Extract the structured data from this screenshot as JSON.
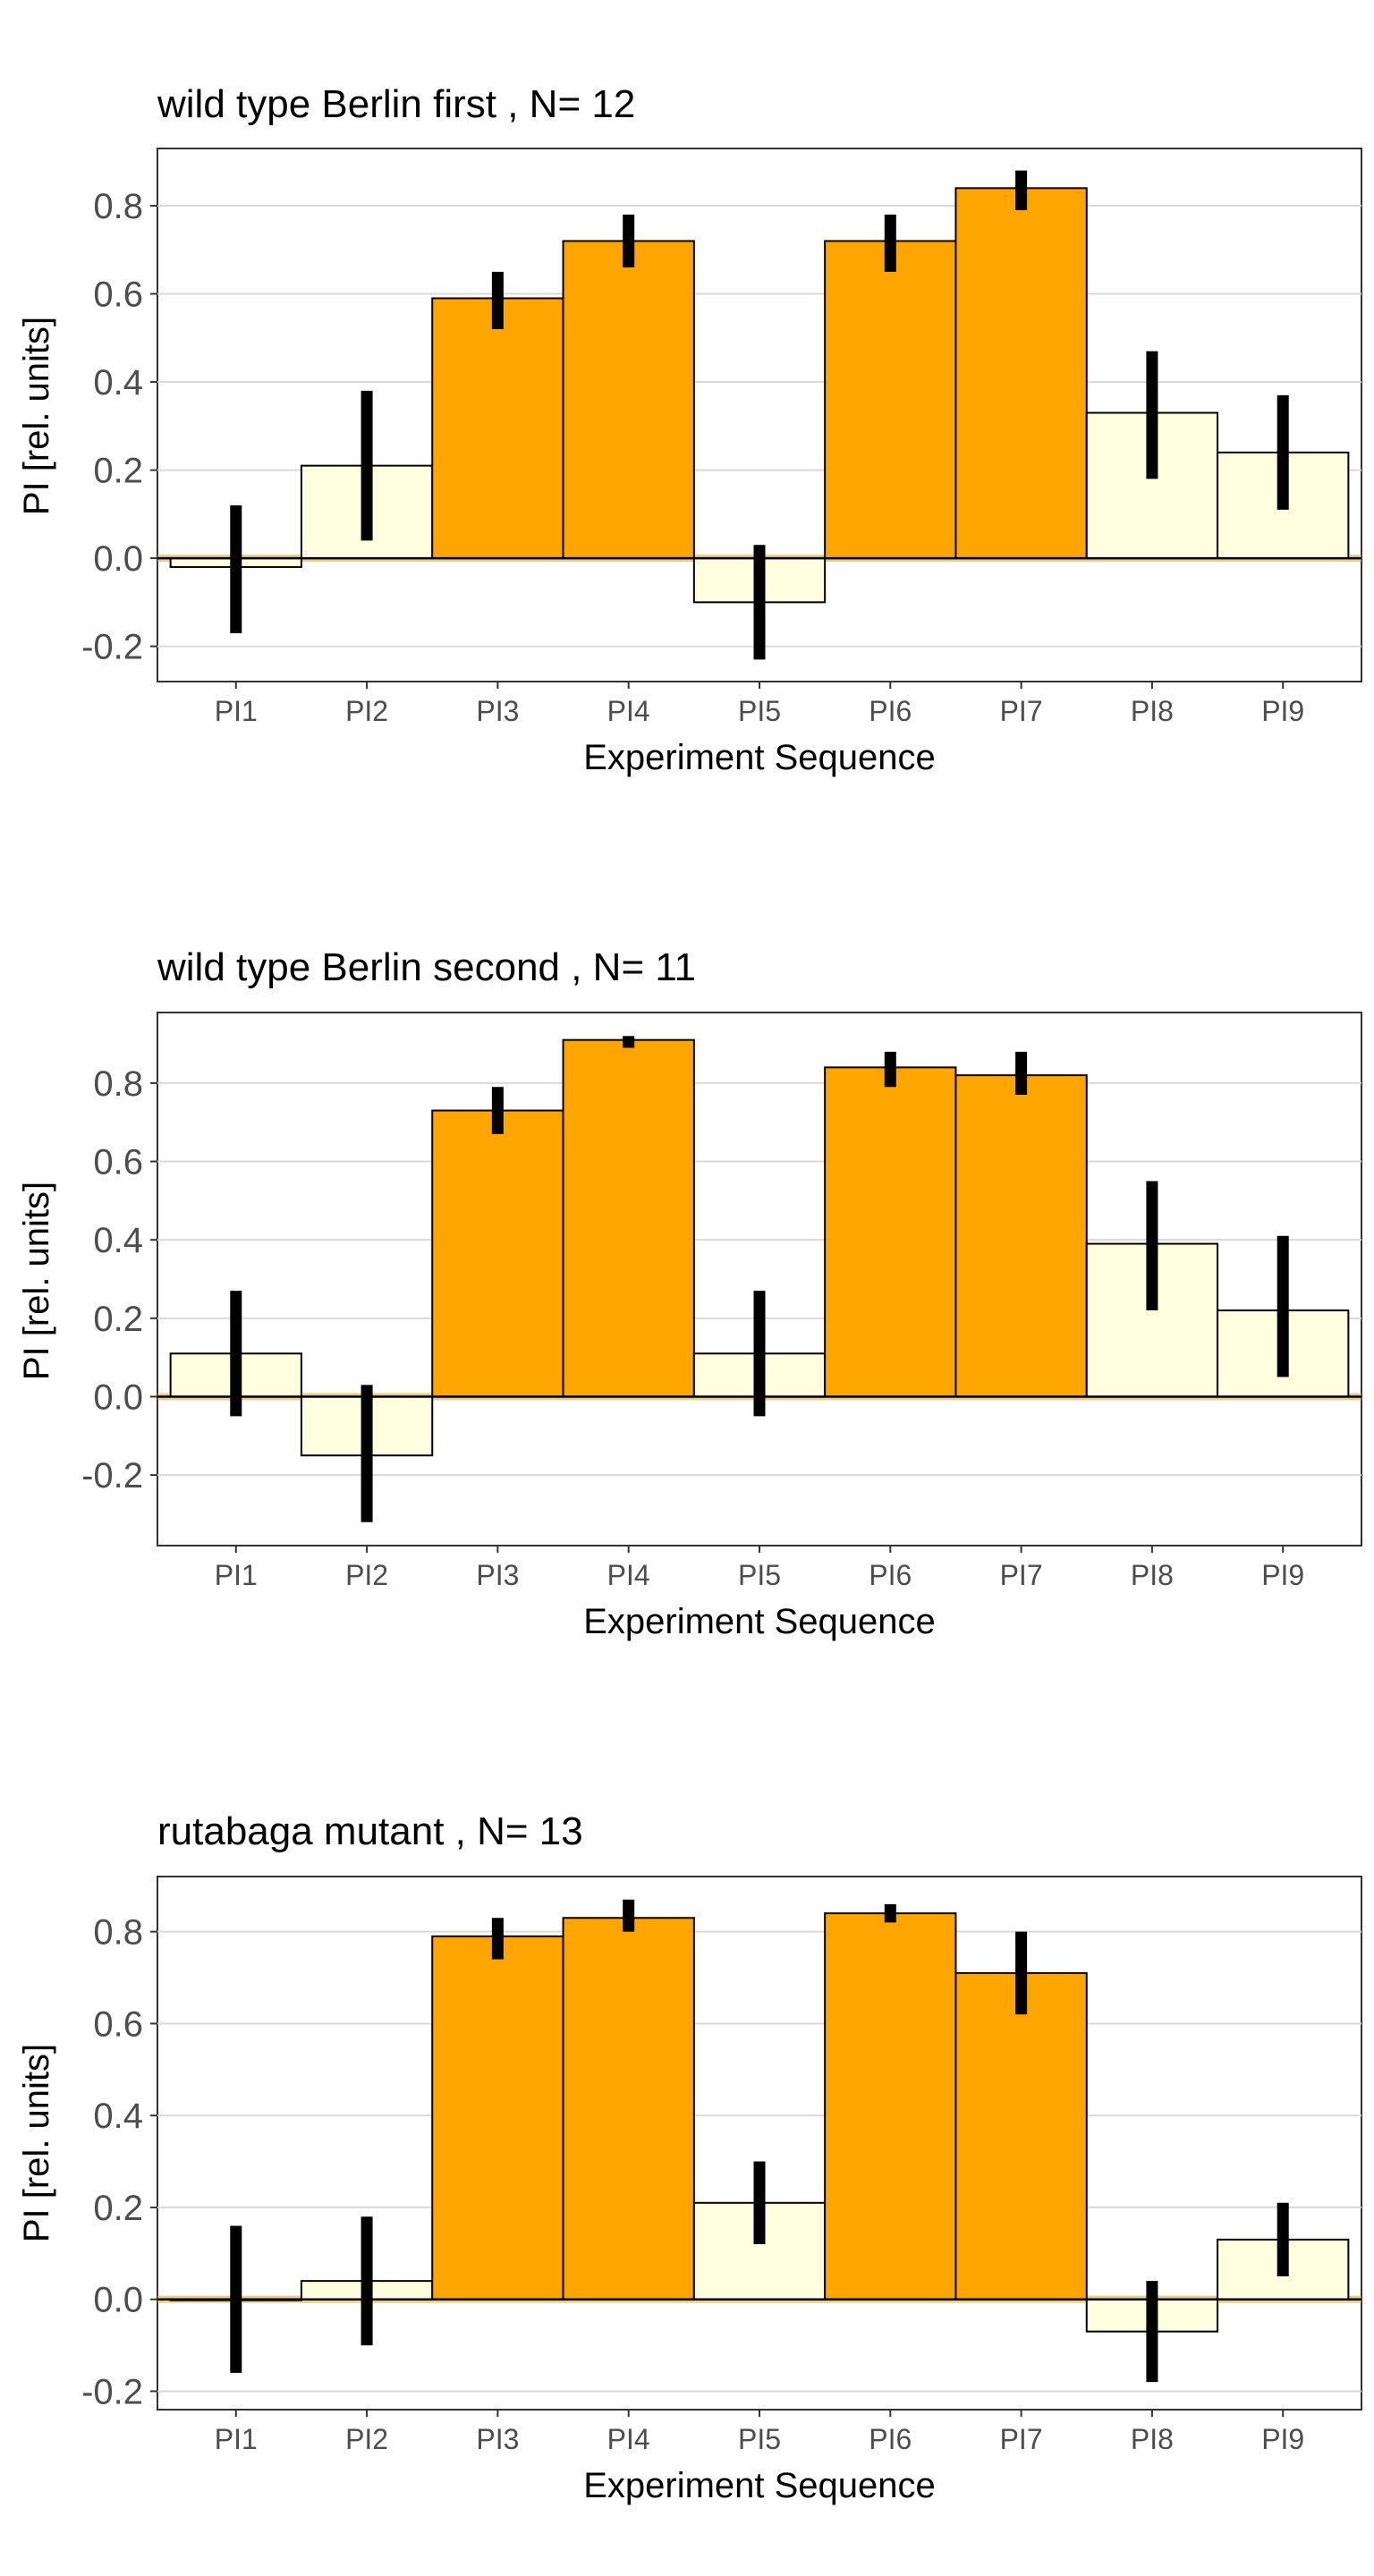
{
  "figure": {
    "background": "#ffffff"
  },
  "colors": {
    "orange": "#FFA500",
    "light": "#FFFFE0",
    "errorbar": "#000000",
    "grid": "#D9D9D9",
    "zero_line": "#000000",
    "zero_band": "#DAA520"
  },
  "chart_data": [
    {
      "type": "bar",
      "title": "wild type Berlin first , N= 12",
      "xlabel": "Experiment Sequence",
      "ylabel": "PI [rel. units]",
      "ylim": [
        -0.28,
        0.93
      ],
      "yticks": [
        -0.2,
        0.0,
        0.2,
        0.4,
        0.6,
        0.8
      ],
      "ytick_labels": [
        "-0.2",
        "0.0",
        "0.2",
        "0.4",
        "0.6",
        "0.8"
      ],
      "grid": true,
      "categories": [
        "PI1",
        "PI2",
        "PI3",
        "PI4",
        "PI5",
        "PI6",
        "PI7",
        "PI8",
        "PI9"
      ],
      "values": [
        -0.02,
        0.21,
        0.59,
        0.72,
        -0.1,
        0.72,
        0.84,
        0.33,
        0.24
      ],
      "error_low": [
        -0.17,
        0.04,
        0.52,
        0.66,
        -0.23,
        0.65,
        0.79,
        0.18,
        0.11
      ],
      "error_high": [
        0.12,
        0.38,
        0.65,
        0.78,
        0.03,
        0.78,
        0.88,
        0.47,
        0.37
      ],
      "fill": [
        "light",
        "light",
        "orange",
        "orange",
        "light",
        "orange",
        "orange",
        "light",
        "light"
      ]
    },
    {
      "type": "bar",
      "title": "wild type Berlin second , N= 11",
      "xlabel": "Experiment Sequence",
      "ylabel": "PI [rel. units]",
      "ylim": [
        -0.38,
        0.98
      ],
      "yticks": [
        -0.2,
        0.0,
        0.2,
        0.4,
        0.6,
        0.8
      ],
      "ytick_labels": [
        "-0.2",
        "0.0",
        "0.2",
        "0.4",
        "0.6",
        "0.8"
      ],
      "grid": true,
      "categories": [
        "PI1",
        "PI2",
        "PI3",
        "PI4",
        "PI5",
        "PI6",
        "PI7",
        "PI8",
        "PI9"
      ],
      "values": [
        0.11,
        -0.15,
        0.73,
        0.91,
        0.11,
        0.84,
        0.82,
        0.39,
        0.22
      ],
      "error_low": [
        -0.05,
        -0.32,
        0.67,
        0.89,
        -0.05,
        0.79,
        0.77,
        0.22,
        0.05
      ],
      "error_high": [
        0.27,
        0.03,
        0.79,
        0.92,
        0.27,
        0.88,
        0.88,
        0.55,
        0.41
      ],
      "fill": [
        "light",
        "light",
        "orange",
        "orange",
        "light",
        "orange",
        "orange",
        "light",
        "light"
      ]
    },
    {
      "type": "bar",
      "title": "rutabaga mutant , N= 13",
      "xlabel": "Experiment Sequence",
      "ylabel": "PI [rel. units]",
      "ylim": [
        -0.24,
        0.92
      ],
      "yticks": [
        -0.2,
        0.0,
        0.2,
        0.4,
        0.6,
        0.8
      ],
      "ytick_labels": [
        "-0.2",
        "0.0",
        "0.2",
        "0.4",
        "0.6",
        "0.8"
      ],
      "grid": true,
      "categories": [
        "PI1",
        "PI2",
        "PI3",
        "PI4",
        "PI5",
        "PI6",
        "PI7",
        "PI8",
        "PI9"
      ],
      "values": [
        0.0,
        0.04,
        0.79,
        0.83,
        0.21,
        0.84,
        0.71,
        -0.07,
        0.13
      ],
      "error_low": [
        -0.16,
        -0.1,
        0.74,
        0.8,
        0.12,
        0.82,
        0.62,
        -0.18,
        0.05
      ],
      "error_high": [
        0.16,
        0.18,
        0.83,
        0.87,
        0.3,
        0.86,
        0.8,
        0.04,
        0.21
      ],
      "fill": [
        "light",
        "light",
        "orange",
        "orange",
        "light",
        "orange",
        "orange",
        "light",
        "light"
      ]
    }
  ]
}
